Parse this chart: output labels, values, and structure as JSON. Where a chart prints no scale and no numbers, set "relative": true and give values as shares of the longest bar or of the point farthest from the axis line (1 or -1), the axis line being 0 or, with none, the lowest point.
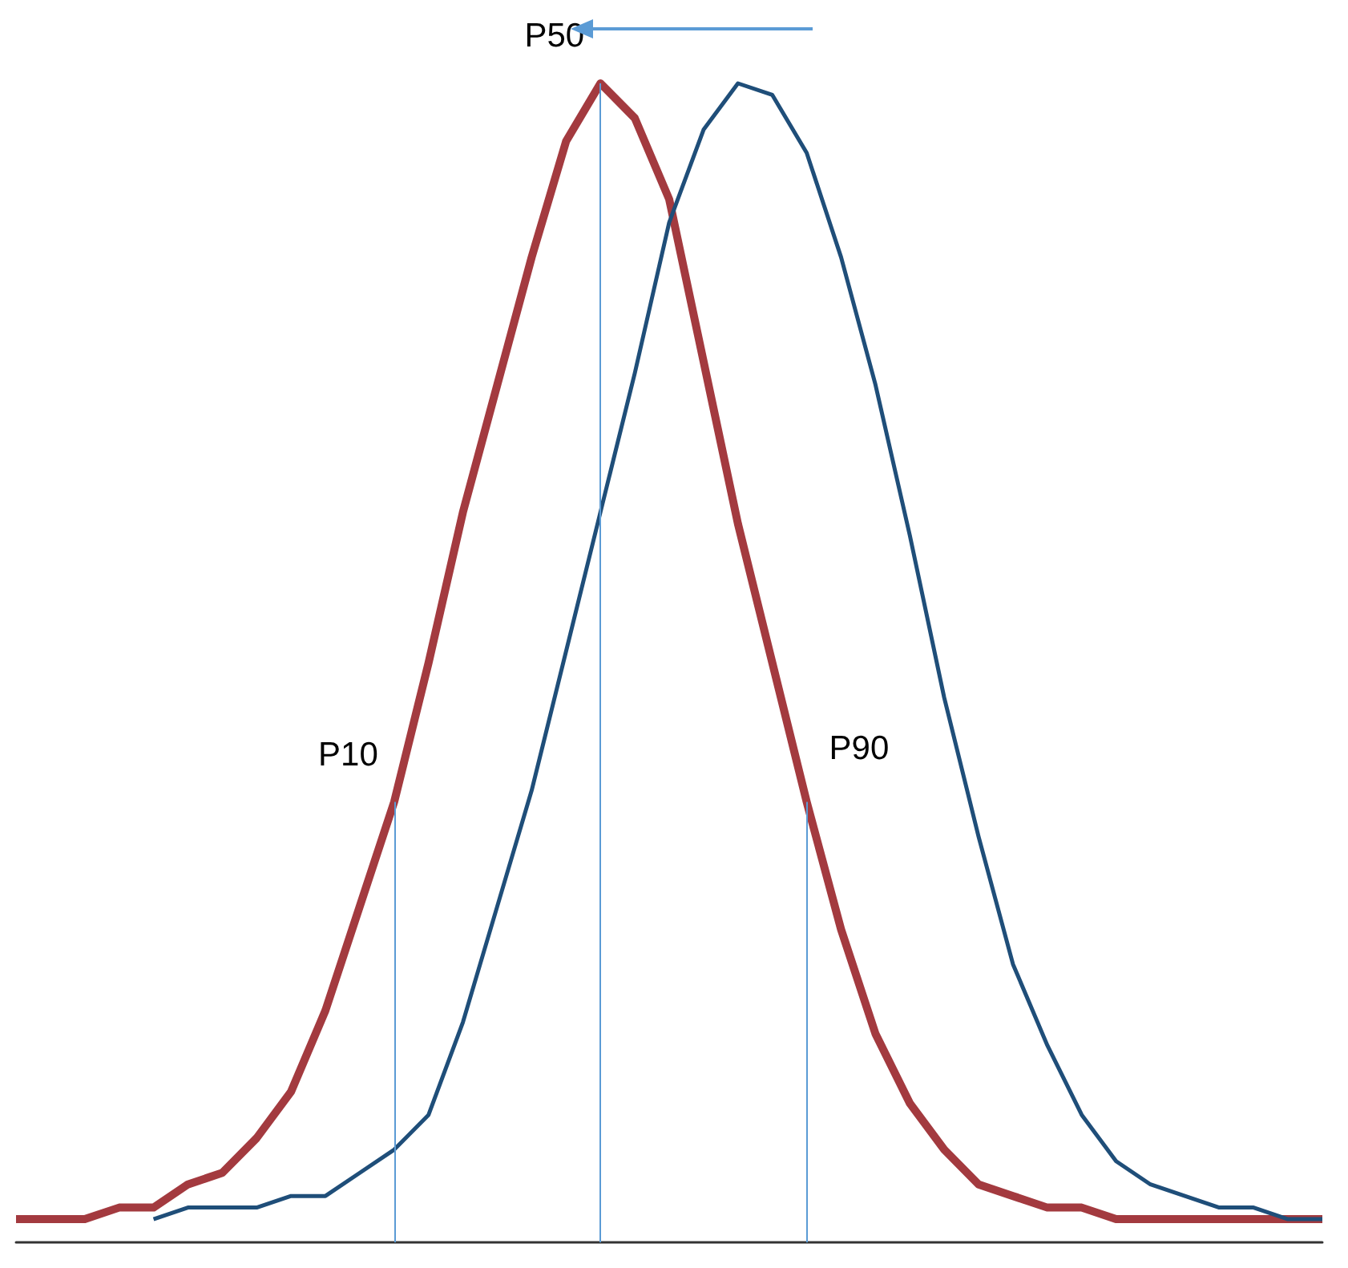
{
  "chart_data": {
    "type": "line",
    "relative": true,
    "marker": "none",
    "line_style": "solid",
    "grid": false,
    "categories": [
      null,
      null,
      null,
      null,
      null,
      null,
      null,
      null,
      null,
      null,
      null,
      null,
      null,
      null,
      null,
      null,
      null,
      null,
      null,
      null,
      null,
      null,
      null,
      null,
      null,
      null,
      null,
      null,
      null,
      null,
      null,
      null,
      null,
      null,
      null,
      null,
      null,
      null,
      null
    ],
    "series": [
      {
        "color": "#a33a3f",
        "values": [
          0.02,
          0.02,
          0.02,
          0.03,
          0.03,
          0.05,
          0.06,
          0.09,
          0.13,
          0.2,
          0.29,
          0.38,
          0.5,
          0.63,
          0.74,
          0.85,
          0.95,
          1,
          0.97,
          0.9,
          0.76,
          0.62,
          0.5,
          0.38,
          0.27,
          0.18,
          0.12,
          0.08,
          0.05,
          0.04,
          0.03,
          0.03,
          0.02,
          0.02,
          0.02,
          0.02,
          0.02,
          0.02,
          0.02
        ]
      },
      {
        "color": "#1f4e79",
        "values": [
          null,
          null,
          null,
          null,
          0.02,
          0.03,
          0.03,
          0.03,
          0.04,
          0.04,
          0.06,
          0.08,
          0.11,
          0.19,
          0.29,
          0.39,
          0.51,
          0.63,
          0.75,
          0.88,
          0.96,
          1,
          0.99,
          0.94,
          0.85,
          0.74,
          0.61,
          0.47,
          0.35,
          0.24,
          0.17,
          0.11,
          0.07,
          0.05,
          0.04,
          0.03,
          0.03,
          0.02,
          0.02
        ]
      }
    ],
    "annotations": [
      "P10",
      "P50",
      "P90"
    ]
  }
}
